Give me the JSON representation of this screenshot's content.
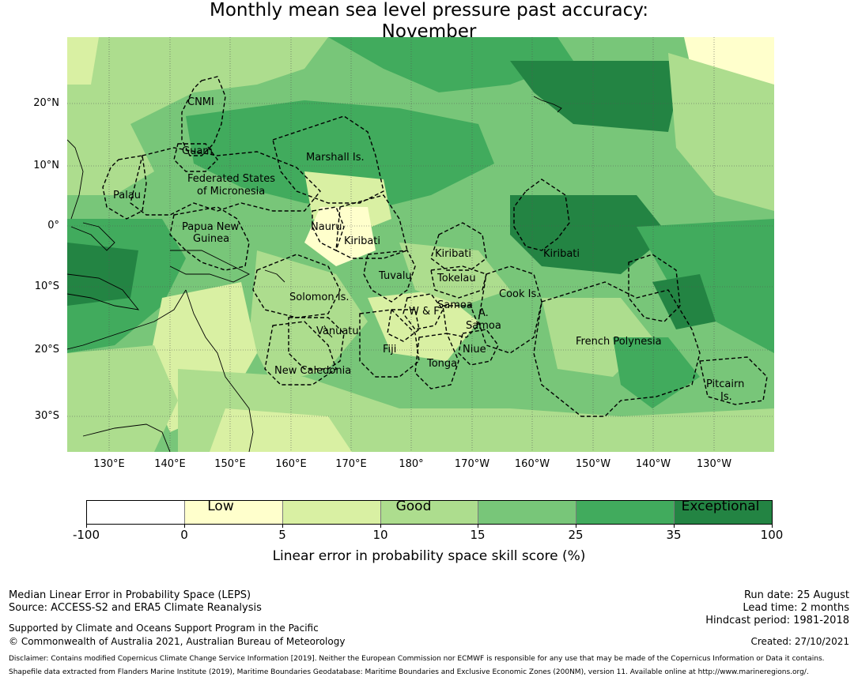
{
  "title_line1": "Monthly mean sea level pressure past accuracy:",
  "title_line2": "November",
  "lat_labels": [
    "20°N",
    "10°N",
    "0°",
    "10°S",
    "20°S",
    "30°S"
  ],
  "lon_labels": [
    "130°E",
    "140°E",
    "150°E",
    "160°E",
    "170°E",
    "180°",
    "170°W",
    "160°W",
    "150°W",
    "140°W",
    "130°W"
  ],
  "regions": [
    "CNMI",
    "Guam",
    "Marshall Is.",
    "Federated States",
    "of Micronesia",
    "Palau",
    "Nauru",
    "Papua New",
    "Guinea",
    "Kiribati",
    "Kiribati",
    "Kiribati",
    "Tuvalu",
    "Tokelau",
    "Solomon Is.",
    "Samoa",
    "A.",
    "Samoa",
    "W & F",
    "Cook Is.",
    "Vanuatu",
    "Fiji",
    "Niue",
    "French Polynesia",
    "Tonga",
    "New Caledonia",
    "Pitcairn",
    "Is."
  ],
  "colorbar": {
    "colors": [
      "#ffffff",
      "#ffffcc",
      "#d9f0a3",
      "#addd8e",
      "#78c679",
      "#41ab5d",
      "#238443"
    ],
    "ticks": [
      "-100",
      "0",
      "5",
      "10",
      "15",
      "25",
      "35",
      "100"
    ],
    "categories": [
      "Low",
      "Good",
      "Exceptional"
    ],
    "label": "Linear error in probability space skill score (%)"
  },
  "footer": {
    "line1": "Median Linear Error in Probability Space (LEPS)",
    "line2": "Source: ACCESS-S2 and ERA5 Climate Reanalysis",
    "line3": "Supported by Climate and Oceans Support Program in the Pacific",
    "line4": "© Commonwealth of Australia 2021, Australian Bureau of Meteorology",
    "run_date": "Run date: 25 August",
    "lead_time": "Lead time: 2 months",
    "hindcast": "Hindcast period: 1981-2018",
    "created": "Created: 27/10/2021",
    "disclaimer1": "Disclaimer: Contains modified Copernicus Climate Change Service Information [2019]. Neither the European Commission nor ECMWF is responsible for any use that may be made of the Copernicus Information or Data it contains.",
    "disclaimer2": "Shapefile data extracted from Flanders Marine Institute (2019), Maritime Boundaries Geodatabase: Maritime Boundaries and Exclusive Economic Zones (200NM), version 11. Available online at http://www.marineregions.org/."
  }
}
